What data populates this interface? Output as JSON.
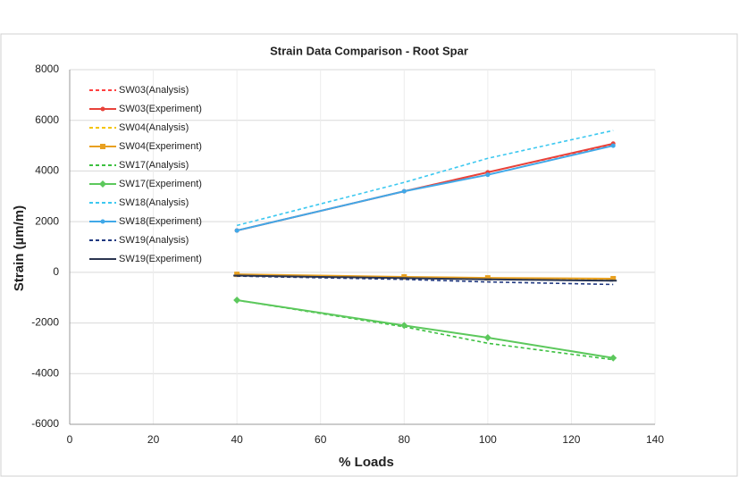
{
  "chart_data": {
    "type": "line",
    "title": "Strain Data Comparison -  Root Spar",
    "xlabel": "% Loads",
    "ylabel": "Strain (µm/m)",
    "x": [
      40,
      80,
      100,
      130
    ],
    "xlim": [
      0,
      140
    ],
    "xticks": [
      0,
      20,
      40,
      60,
      80,
      100,
      120,
      140
    ],
    "ylim": [
      -6000,
      8000
    ],
    "yticks": [
      -6000,
      -4000,
      -2000,
      0,
      2000,
      4000,
      6000,
      8000
    ],
    "grid": true,
    "legend": "upper left",
    "series": [
      {
        "name": "SW03(Analysis)",
        "color": "#ff4040",
        "dashed": true,
        "marker": "none",
        "values": [
          1650,
          3200,
          3950,
          5050
        ]
      },
      {
        "name": "SW03(Experiment)",
        "color": "#e8423a",
        "dashed": false,
        "marker": "circle",
        "values": [
          1650,
          3200,
          3950,
          5080
        ]
      },
      {
        "name": "SW04(Analysis)",
        "color": "#f5c400",
        "dashed": true,
        "marker": "none",
        "values": [
          -100,
          -200,
          -250,
          -300
        ]
      },
      {
        "name": "SW04(Experiment)",
        "color": "#e8a020",
        "dashed": false,
        "marker": "square",
        "values": [
          -80,
          -180,
          -220,
          -250
        ]
      },
      {
        "name": "SW17(Analysis)",
        "color": "#3cc040",
        "dashed": true,
        "marker": "none",
        "values": [
          -1100,
          -2150,
          -2800,
          -3450
        ]
      },
      {
        "name": "SW17(Experiment)",
        "color": "#5cc85c",
        "dashed": false,
        "marker": "diamond",
        "values": [
          -1100,
          -2100,
          -2580,
          -3380
        ]
      },
      {
        "name": "SW18(Analysis)",
        "color": "#3cc8f0",
        "dashed": true,
        "marker": "none",
        "values": [
          1850,
          3550,
          4500,
          5600
        ]
      },
      {
        "name": "SW18(Experiment)",
        "color": "#40a8e8",
        "dashed": false,
        "marker": "circle",
        "values": [
          1650,
          3200,
          3850,
          5000
        ]
      },
      {
        "name": "SW19(Analysis)",
        "color": "#203880",
        "dashed": true,
        "marker": "none",
        "values": [
          -150,
          -280,
          -380,
          -480
        ]
      },
      {
        "name": "SW19(Experiment)",
        "color": "#2a3550",
        "dashed": false,
        "marker": "dash",
        "values": [
          -130,
          -230,
          -280,
          -330
        ]
      }
    ]
  }
}
